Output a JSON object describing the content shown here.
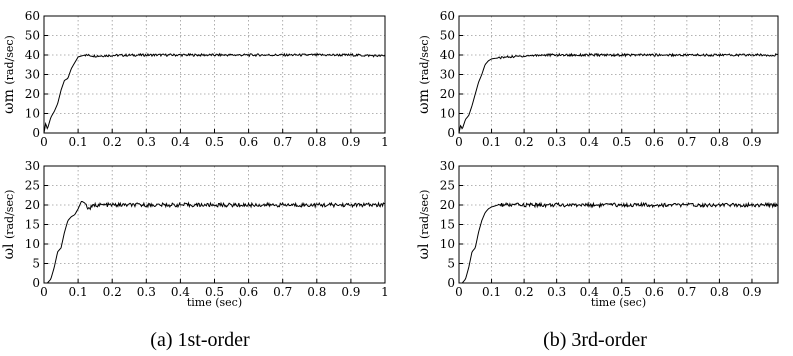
{
  "chart_data": [
    {
      "type": "line",
      "panel": "a-top",
      "ylabel_symbol": "ω",
      "ylabel_sub": "m",
      "ylabel_unit": "(rad/sec)",
      "xlabel": "",
      "xlim": [
        0,
        1
      ],
      "ylim": [
        0,
        60
      ],
      "xticks": [
        0,
        0.1,
        0.2,
        0.3,
        0.4,
        0.5,
        0.6,
        0.7,
        0.8,
        0.9,
        1
      ],
      "xtick_labels": [
        "0",
        "0.1",
        "0.2",
        "0.3",
        "0.4",
        "0.5",
        "0.6",
        "0.7",
        "0.8",
        "0.9",
        "1"
      ],
      "yticks": [
        0,
        10,
        20,
        30,
        40,
        50,
        60
      ],
      "ytick_labels": [
        "0",
        "10",
        "20",
        "30",
        "40",
        "50",
        "60"
      ],
      "grid": true,
      "series": [
        {
          "x": [
            0,
            0.005,
            0.01,
            0.02,
            0.03,
            0.04,
            0.05,
            0.06,
            0.07,
            0.08,
            0.09,
            0.1,
            0.12,
            0.15,
            0.2,
            0.3,
            0.4,
            0.5,
            0.6,
            0.7,
            0.8,
            0.9,
            1.0
          ],
          "y": [
            0,
            5,
            2,
            8,
            11,
            15,
            22,
            27,
            28,
            33,
            36,
            39,
            40,
            39.5,
            39.8,
            40,
            40,
            40,
            40,
            40,
            40,
            40,
            39.5
          ]
        }
      ]
    },
    {
      "type": "line",
      "panel": "a-bottom",
      "ylabel_symbol": "ω",
      "ylabel_sub": "l",
      "ylabel_unit": "(rad/sec)",
      "xlabel": "time (sec)",
      "xlim": [
        0,
        1
      ],
      "ylim": [
        0,
        30
      ],
      "xticks": [
        0,
        0.1,
        0.2,
        0.3,
        0.4,
        0.5,
        0.6,
        0.7,
        0.8,
        0.9,
        1
      ],
      "xtick_labels": [
        "0",
        "0.1",
        "0.2",
        "0.3",
        "0.4",
        "0.5",
        "0.6",
        "0.7",
        "0.8",
        "0.9",
        "1"
      ],
      "yticks": [
        0,
        5,
        10,
        15,
        20,
        25,
        30
      ],
      "ytick_labels": [
        "0",
        "5",
        "10",
        "15",
        "20",
        "25",
        "30"
      ],
      "grid": true,
      "series": [
        {
          "x": [
            0,
            0.01,
            0.02,
            0.03,
            0.04,
            0.05,
            0.06,
            0.07,
            0.08,
            0.09,
            0.1,
            0.11,
            0.12,
            0.13,
            0.15,
            0.2,
            0.3,
            0.4,
            0.5,
            0.6,
            0.7,
            0.8,
            0.9,
            1.0
          ],
          "y": [
            0,
            0,
            1,
            4,
            8,
            9,
            13,
            16,
            17,
            17.5,
            19,
            21,
            20.5,
            19,
            20,
            20,
            20,
            20,
            20,
            20,
            20,
            20,
            20,
            20
          ]
        }
      ]
    },
    {
      "type": "line",
      "panel": "b-top",
      "ylabel_symbol": "ω",
      "ylabel_sub": "m",
      "ylabel_unit": "(rad/sec)",
      "xlabel": "",
      "xlim": [
        0,
        0.98
      ],
      "ylim": [
        0,
        60
      ],
      "xticks": [
        0,
        0.1,
        0.2,
        0.3,
        0.4,
        0.5,
        0.6,
        0.7,
        0.8,
        0.9
      ],
      "xtick_labels": [
        "0",
        "0.1",
        "0.2",
        "0.3",
        "0.4",
        "0.5",
        "0.6",
        "0.7",
        "0.8",
        "0.9"
      ],
      "yticks": [
        0,
        10,
        20,
        30,
        40,
        50,
        60
      ],
      "ytick_labels": [
        "0",
        "10",
        "20",
        "30",
        "40",
        "50",
        "60"
      ],
      "grid": true,
      "series": [
        {
          "x": [
            0,
            0.005,
            0.01,
            0.02,
            0.03,
            0.04,
            0.05,
            0.06,
            0.07,
            0.08,
            0.09,
            0.1,
            0.12,
            0.15,
            0.2,
            0.25,
            0.3,
            0.4,
            0.5,
            0.6,
            0.7,
            0.8,
            0.9,
            0.98
          ],
          "y": [
            0,
            4,
            2,
            7,
            9,
            14,
            20,
            26,
            30,
            35,
            37,
            38,
            38.5,
            39,
            39.5,
            40,
            40,
            40,
            40,
            40,
            40,
            40,
            40,
            40
          ]
        }
      ]
    },
    {
      "type": "line",
      "panel": "b-bottom",
      "ylabel_symbol": "ω",
      "ylabel_sub": "l",
      "ylabel_unit": "(rad/sec)",
      "xlabel": "time (sec)",
      "xlim": [
        0,
        0.98
      ],
      "ylim": [
        0,
        30
      ],
      "xticks": [
        0,
        0.1,
        0.2,
        0.3,
        0.4,
        0.5,
        0.6,
        0.7,
        0.8,
        0.9
      ],
      "xtick_labels": [
        "0",
        "0.1",
        "0.2",
        "0.3",
        "0.4",
        "0.5",
        "0.6",
        "0.7",
        "0.8",
        "0.9"
      ],
      "yticks": [
        0,
        5,
        10,
        15,
        20,
        25,
        30
      ],
      "ytick_labels": [
        "0",
        "5",
        "10",
        "15",
        "20",
        "25",
        "30"
      ],
      "grid": true,
      "series": [
        {
          "x": [
            0,
            0.01,
            0.02,
            0.03,
            0.04,
            0.05,
            0.06,
            0.07,
            0.08,
            0.09,
            0.1,
            0.12,
            0.15,
            0.2,
            0.3,
            0.4,
            0.5,
            0.6,
            0.7,
            0.8,
            0.9,
            0.98
          ],
          "y": [
            0,
            0,
            1,
            4,
            8,
            9,
            13,
            16,
            18,
            19,
            19.5,
            20,
            20,
            20,
            20,
            20,
            20,
            20,
            20,
            20,
            20,
            20
          ]
        }
      ]
    }
  ],
  "captions": {
    "a": "(a) 1st-order",
    "b": "(b) 3rd-order"
  }
}
